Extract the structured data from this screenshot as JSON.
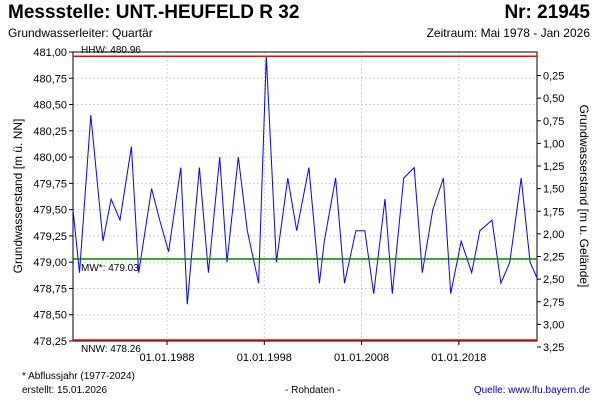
{
  "header": {
    "title": "Messstelle: UNT.-HEUFELD R 32",
    "number": "Nr: 21945",
    "aquifer": "Grundwasserleiter: Quartär",
    "period": "Zeitraum: Mai 1978 - Jan 2026"
  },
  "footer": {
    "footnote": "* Abflussjahr (1977-2024)",
    "created": "erstellt:  15.01.2026",
    "rawdata": "- Rohdaten -",
    "source": "Quelle:  www.lfu.bayern.de"
  },
  "colors": {
    "series": "#0000ff",
    "extremes": "#ff0000",
    "mean": "#008000",
    "grid": "#d0d0d0"
  },
  "chart_data": {
    "type": "line",
    "ylabel": "Grundwasserstand [m ü. NN]",
    "y2label": "Grundwasserstand [m u. Gelände]",
    "ylim": [
      478.25,
      481.0
    ],
    "y2lim": [
      3.25,
      0.25
    ],
    "yticks": [
      "478,25",
      "478,50",
      "478,75",
      "479,00",
      "479,25",
      "479,50",
      "479,75",
      "480,00",
      "480,25",
      "480,50",
      "480,75",
      "481,00"
    ],
    "y2ticks": [
      "0,25",
      "0,50",
      "0,75",
      "1,00",
      "1,25",
      "1,50",
      "1,75",
      "2,00",
      "2,25",
      "2,50",
      "2,75",
      "3,00",
      "3,25"
    ],
    "xlim": [
      "1978-05-01",
      "2026-01-15"
    ],
    "xticks": [
      "01.01.1988",
      "01.01.1998",
      "01.01.2008",
      "01.01.2018"
    ],
    "grid": true,
    "reference_lines": [
      {
        "label": "HHW: 480.96",
        "value": 480.96,
        "color": "#ff0000"
      },
      {
        "label": "MW*: 479.03",
        "value": 479.03,
        "color": "#008000"
      },
      {
        "label": "NNW: 478.26",
        "value": 478.26,
        "color": "#ff0000"
      }
    ],
    "series": [
      {
        "values": {
          "x": [
            "1978-05-01",
            "1979-01-01",
            "1980-03-01",
            "1981-06-01",
            "1982-04-01",
            "1983-03-01",
            "1984-05-01",
            "1985-02-01",
            "1986-06-01",
            "1987-04-01",
            "1988-03-01",
            "1989-06-01",
            "1990-02-01",
            "1991-05-01",
            "1992-04-01",
            "1993-06-01",
            "1994-03-01",
            "1995-05-01",
            "1996-04-01",
            "1997-06-01",
            "1998-03-15",
            "1999-04-01",
            "2000-06-01",
            "2001-05-01",
            "2002-08-01",
            "2003-09-01",
            "2004-03-01",
            "2005-05-01",
            "2006-04-01",
            "2007-06-01",
            "2008-05-01",
            "2009-04-01",
            "2010-06-01",
            "2011-03-01",
            "2012-05-01",
            "2013-06-01",
            "2014-04-01",
            "2015-05-01",
            "2016-06-01",
            "2017-03-01",
            "2018-04-01",
            "2019-05-01",
            "2020-03-01",
            "2021-06-01",
            "2022-05-01",
            "2023-04-01",
            "2024-06-01",
            "2025-05-01",
            "2026-01-15"
          ],
          "y": [
            479.5,
            478.9,
            480.4,
            479.2,
            479.6,
            479.4,
            480.1,
            478.9,
            479.7,
            479.4,
            479.1,
            479.9,
            478.6,
            479.9,
            478.9,
            480.0,
            479.0,
            480.0,
            479.3,
            478.8,
            480.96,
            479.0,
            479.8,
            479.3,
            479.9,
            478.8,
            479.2,
            479.8,
            478.8,
            479.3,
            479.3,
            478.7,
            479.6,
            478.7,
            479.8,
            479.9,
            478.9,
            479.5,
            479.8,
            478.7,
            479.2,
            478.9,
            479.3,
            479.4,
            478.8,
            479.0,
            479.8,
            479.0,
            478.85
          ]
        }
      }
    ]
  }
}
